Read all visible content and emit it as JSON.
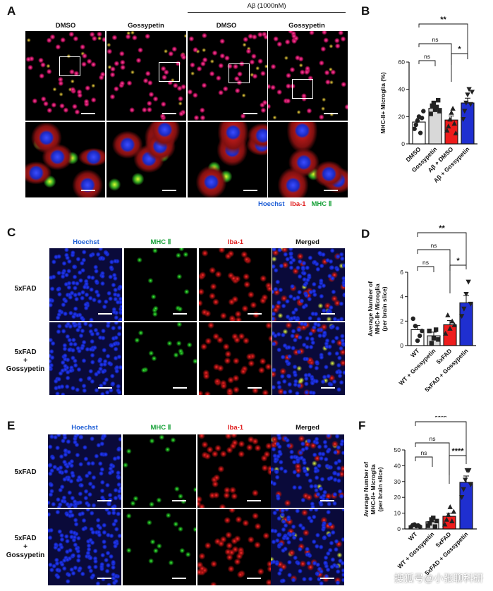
{
  "panels": {
    "A": {
      "letter": "A",
      "cols": [
        "DMSO",
        "Gossypetin",
        "DMSO",
        "Gossypetin"
      ],
      "group_label": "Aβ (1000nM)",
      "legend": [
        {
          "text": "Hoechst",
          "color": "#1f5fd6"
        },
        {
          "text": "Iba-1",
          "color": "#e02020"
        },
        {
          "text": "MHC Ⅱ",
          "color": "#19a23a"
        }
      ]
    },
    "C": {
      "letter": "C",
      "cols": [
        "Hoechst",
        "MHC Ⅱ",
        "Iba-1",
        "Merged"
      ],
      "col_colors": [
        "#1f5fd6",
        "#19a23a",
        "#e02020",
        "#111111"
      ],
      "rows": [
        "5xFAD",
        "5xFAD\n+\nGossypetin"
      ]
    },
    "E": {
      "letter": "E",
      "cols": [
        "Hoechst",
        "MHC Ⅱ",
        "Iba-1",
        "Merged"
      ],
      "col_colors": [
        "#1f5fd6",
        "#19a23a",
        "#e02020",
        "#111111"
      ],
      "rows": [
        "5xFAD",
        "5xFAD\n+\nGossypetin"
      ]
    }
  },
  "watermark": "搜狐号@小张聊科研",
  "chart_data": [
    {
      "panel": "B",
      "type": "bar",
      "ylabel": "MHC-II+ Microglia (%)",
      "ylim": [
        0,
        60
      ],
      "yticks": [
        0,
        20,
        40,
        60
      ],
      "categories": [
        "DMSO",
        "Gossypetin",
        "Aβ + DMSO",
        "Aβ + Gossypetin"
      ],
      "values": [
        16,
        26,
        17.5,
        30
      ],
      "errors": [
        2.5,
        2,
        3,
        3.5
      ],
      "colors": [
        "#ffffff",
        "#d8d8d8",
        "#ee1c1c",
        "#1f2fd0"
      ],
      "points": [
        [
          11,
          14,
          17,
          20,
          8,
          19,
          24
        ],
        [
          22,
          28,
          30,
          25,
          27,
          32,
          24
        ],
        [
          10,
          13,
          18,
          23,
          26,
          15,
          8
        ],
        [
          18,
          24,
          30,
          36,
          40,
          29,
          38
        ]
      ],
      "markers": [
        "circle",
        "square",
        "triangle",
        "triangle-down"
      ],
      "comparisons": [
        {
          "from": 0,
          "to": 3,
          "text": "**"
        },
        {
          "from": 0,
          "to": 2,
          "text": "ns"
        },
        {
          "from": 0,
          "to": 1,
          "text": "ns"
        },
        {
          "from": 2,
          "to": 3,
          "text": "*"
        }
      ]
    },
    {
      "panel": "D",
      "type": "bar",
      "ylabel": "Average Number of MHC-II+ Microglia (per brain slice)",
      "ylim": [
        0,
        6
      ],
      "yticks": [
        0,
        2,
        4,
        6
      ],
      "categories": [
        "WT",
        "WT + Gossypetin",
        "5xFAD",
        "5xFAD + Gossypetin"
      ],
      "values": [
        1.3,
        0.8,
        1.7,
        3.5
      ],
      "errors": [
        0.35,
        0.3,
        0.35,
        0.6
      ],
      "colors": [
        "#ffffff",
        "#d8d8d8",
        "#ee1c1c",
        "#1f2fd0"
      ],
      "points": [
        [
          2.2,
          1.6,
          0.4,
          0.8,
          1.2
        ],
        [
          1.2,
          0.2,
          0.6,
          1.3,
          0.5
        ],
        [
          1.0,
          2.5,
          1.4,
          2.0,
          1.7
        ],
        [
          2.4,
          3.0,
          4.2,
          5.2,
          3.4
        ]
      ],
      "markers": [
        "circle",
        "square",
        "triangle",
        "triangle-down"
      ],
      "comparisons": [
        {
          "from": 0,
          "to": 3,
          "text": "**"
        },
        {
          "from": 0,
          "to": 2,
          "text": "ns"
        },
        {
          "from": 0,
          "to": 1,
          "text": "ns"
        },
        {
          "from": 2,
          "to": 3,
          "text": "*"
        }
      ]
    },
    {
      "panel": "F",
      "type": "bar",
      "ylabel": "Average Number of MHC-II+ Microglia (per brain slice)",
      "ylim": [
        0,
        50
      ],
      "yticks": [
        0,
        10,
        20,
        30,
        40,
        50
      ],
      "categories": [
        "WT",
        "WT + Gossypetin",
        "5xFAD",
        "5xFAD + Gossypetin"
      ],
      "values": [
        2,
        4.5,
        8,
        29.5
      ],
      "errors": [
        0.6,
        1.5,
        2,
        4
      ],
      "colors": [
        "#ffffff",
        "#d8d8d8",
        "#ee1c1c",
        "#1f2fd0"
      ],
      "points": [
        [
          1.2,
          2.4,
          2.8,
          1.8,
          2.2,
          1.5
        ],
        [
          2,
          3.5,
          6,
          7,
          1.5,
          5
        ],
        [
          3,
          6,
          9,
          14,
          5,
          11
        ],
        [
          20,
          25,
          31,
          37,
          37,
          28
        ]
      ],
      "markers": [
        "circle",
        "square",
        "triangle",
        "triangle-down"
      ],
      "comparisons": [
        {
          "from": 0,
          "to": 3,
          "text": "****"
        },
        {
          "from": 0,
          "to": 2,
          "text": "ns"
        },
        {
          "from": 0,
          "to": 1,
          "text": "ns"
        },
        {
          "from": 2,
          "to": 3,
          "text": "****"
        }
      ]
    }
  ]
}
